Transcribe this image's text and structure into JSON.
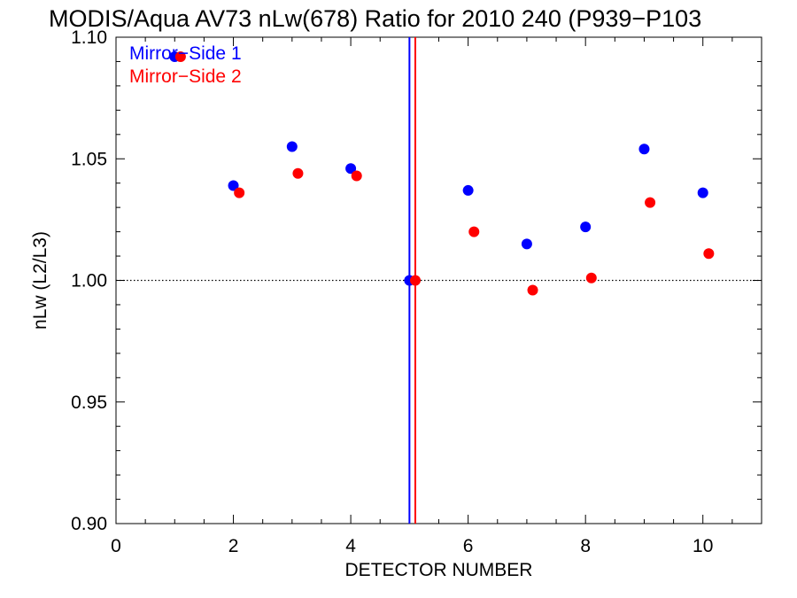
{
  "chart_data": {
    "type": "scatter",
    "title": "MODIS/Aqua AV73 nLw(678) Ratio for 2010 240 (P939−P103",
    "xlabel": "DETECTOR NUMBER",
    "ylabel": "nLw (L2/L3)",
    "xlim": [
      0,
      11
    ],
    "ylim": [
      0.9,
      1.1
    ],
    "x_ticks": [
      0,
      2,
      4,
      6,
      8,
      10
    ],
    "x_tick_labels": [
      "0",
      "2",
      "4",
      "6",
      "8",
      "10"
    ],
    "y_ticks": [
      0.9,
      0.95,
      1.0,
      1.05,
      1.1
    ],
    "y_tick_labels": [
      "0.90",
      "0.95",
      "1.00",
      "1.05",
      "1.10"
    ],
    "x_minor_step": 0.5,
    "y_minor_step": 0.01,
    "reference_line": {
      "y": 1.0,
      "style": "dotted",
      "color": "#000000"
    },
    "legend_position": "top-left",
    "series": [
      {
        "name": "Mirror−Side 1",
        "color": "#0000ff",
        "x": [
          1.0,
          2.0,
          3.0,
          4.0,
          5.0,
          6.0,
          7.0,
          8.0,
          9.0,
          10.0
        ],
        "y": [
          1.092,
          1.039,
          1.055,
          1.046,
          1.0,
          1.037,
          1.015,
          1.022,
          1.054,
          1.036
        ],
        "vline_x": 5.0
      },
      {
        "name": "Mirror−Side 2",
        "color": "#ff0000",
        "x": [
          1.1,
          2.1,
          3.1,
          4.1,
          5.1,
          6.1,
          7.1,
          8.1,
          9.1,
          10.1
        ],
        "y": [
          1.092,
          1.036,
          1.044,
          1.043,
          1.0,
          1.02,
          0.996,
          1.001,
          1.032,
          1.011
        ],
        "vline_x": 5.1
      }
    ]
  }
}
